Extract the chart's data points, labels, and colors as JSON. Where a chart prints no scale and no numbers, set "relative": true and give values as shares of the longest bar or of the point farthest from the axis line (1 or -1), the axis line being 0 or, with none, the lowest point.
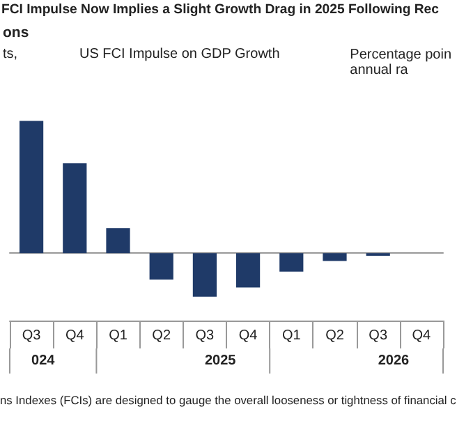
{
  "chart_data": {
    "type": "bar",
    "title": "FCI Impulse Now Implies a Slight Growth Drag in 2025 Following Rec",
    "subtitle": "ons",
    "ylabel": "ts,",
    "y2label": "Percentage poin\nannual ra",
    "categories": [
      "Q3",
      "Q4",
      "Q1",
      "Q2",
      "Q3",
      "Q4",
      "Q1",
      "Q2",
      "Q3",
      "Q4"
    ],
    "values": [
      1,
      0.68,
      0.19,
      -0.2,
      -0.33,
      -0.26,
      -0.14,
      -0.06,
      -0.02,
      null
    ],
    "color": "#1f3a68",
    "relative": true,
    "annotations": [
      "US FCI Impulse on GDP Growth",
      "024",
      "2025",
      "2026",
      "ns Indexes (FCIs) are designed to gauge the overall looseness or tightness of financial c"
    ]
  }
}
